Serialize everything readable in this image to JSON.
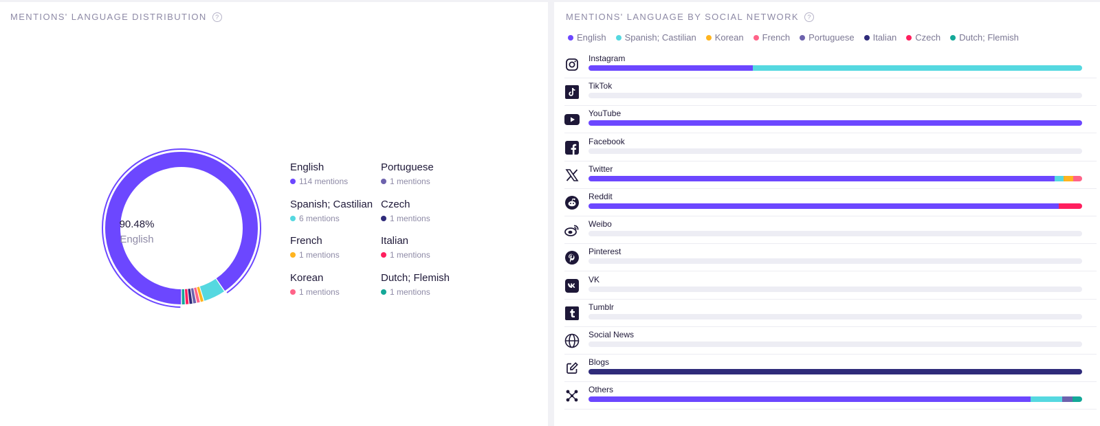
{
  "distribution": {
    "title": "MENTIONS' LANGUAGE DISTRIBUTION",
    "help": "?",
    "center_percent": "90.48%",
    "center_label": "English",
    "legend": [
      {
        "name": "English",
        "count": "114 mentions",
        "color": "#6c47ff"
      },
      {
        "name": "Spanish; Castilian",
        "count": "6 mentions",
        "color": "#55d8e0"
      },
      {
        "name": "French",
        "count": "1 mentions",
        "color": "#ffb41f"
      },
      {
        "name": "Korean",
        "count": "1 mentions",
        "color": "#ff6388"
      },
      {
        "name": "Portuguese",
        "count": "1 mentions",
        "color": "#6d62ad"
      },
      {
        "name": "Czech",
        "count": "1 mentions",
        "color": "#2f2b7a"
      },
      {
        "name": "Italian",
        "count": "1 mentions",
        "color": "#ff1f5e"
      },
      {
        "name": "Dutch; Flemish",
        "count": "1 mentions",
        "color": "#14a898"
      }
    ]
  },
  "by_network": {
    "title": "MENTIONS' LANGUAGE BY SOCIAL NETWORK",
    "help": "?",
    "legend": [
      {
        "name": "English",
        "color": "#6c47ff"
      },
      {
        "name": "Spanish; Castilian",
        "color": "#55d8e0"
      },
      {
        "name": "Korean",
        "color": "#ffb41f"
      },
      {
        "name": "French",
        "color": "#ff6388"
      },
      {
        "name": "Portuguese",
        "color": "#6d62ad"
      },
      {
        "name": "Italian",
        "color": "#2f2b7a"
      },
      {
        "name": "Czech",
        "color": "#ff1f5e"
      },
      {
        "name": "Dutch; Flemish",
        "color": "#14a898"
      }
    ],
    "networks": [
      {
        "name": "Instagram",
        "icon": "instagram-icon"
      },
      {
        "name": "TikTok",
        "icon": "tiktok-icon"
      },
      {
        "name": "YouTube",
        "icon": "youtube-icon"
      },
      {
        "name": "Facebook",
        "icon": "facebook-icon"
      },
      {
        "name": "Twitter",
        "icon": "x-icon"
      },
      {
        "name": "Reddit",
        "icon": "reddit-icon"
      },
      {
        "name": "Weibo",
        "icon": "weibo-icon"
      },
      {
        "name": "Pinterest",
        "icon": "pinterest-icon"
      },
      {
        "name": "VK",
        "icon": "vk-icon"
      },
      {
        "name": "Tumblr",
        "icon": "tumblr-icon"
      },
      {
        "name": "Social News",
        "icon": "globe-icon"
      },
      {
        "name": "Blogs",
        "icon": "edit-icon"
      },
      {
        "name": "Others",
        "icon": "nodes-icon"
      }
    ]
  },
  "chart_data": [
    {
      "type": "pie",
      "title": "MENTIONS' LANGUAGE DISTRIBUTION",
      "categories": [
        "English",
        "Spanish; Castilian",
        "French",
        "Korean",
        "Portuguese",
        "Czech",
        "Italian",
        "Dutch; Flemish"
      ],
      "values": [
        114,
        6,
        1,
        1,
        1,
        1,
        1,
        1
      ]
    },
    {
      "type": "bar",
      "stacked": "percent",
      "orientation": "horizontal",
      "title": "MENTIONS' LANGUAGE BY SOCIAL NETWORK",
      "categories": [
        "Instagram",
        "TikTok",
        "YouTube",
        "Facebook",
        "Twitter",
        "Reddit",
        "Weibo",
        "Pinterest",
        "VK",
        "Tumblr",
        "Social News",
        "Blogs",
        "Others"
      ],
      "series": [
        {
          "name": "English",
          "values": [
            33.3,
            0,
            100,
            0,
            94.4,
            95.2,
            0,
            0,
            0,
            0,
            0,
            0,
            89.5
          ]
        },
        {
          "name": "Spanish; Castilian",
          "values": [
            66.7,
            0,
            0,
            0,
            1.9,
            0,
            0,
            0,
            0,
            0,
            0,
            0,
            6.4
          ]
        },
        {
          "name": "Korean",
          "values": [
            0,
            0,
            0,
            0,
            1.9,
            0,
            0,
            0,
            0,
            0,
            0,
            0,
            0
          ]
        },
        {
          "name": "French",
          "values": [
            0,
            0,
            0,
            0,
            1.8,
            0,
            0,
            0,
            0,
            0,
            0,
            0,
            0
          ]
        },
        {
          "name": "Portuguese",
          "values": [
            0,
            0,
            0,
            0,
            0,
            0,
            0,
            0,
            0,
            0,
            0,
            0,
            2.2
          ]
        },
        {
          "name": "Italian",
          "values": [
            0,
            0,
            0,
            0,
            0,
            0,
            0,
            0,
            0,
            0,
            0,
            100,
            0
          ]
        },
        {
          "name": "Czech",
          "values": [
            0,
            0,
            0,
            0,
            0,
            4.8,
            0,
            0,
            0,
            0,
            0,
            0,
            0
          ]
        },
        {
          "name": "Dutch; Flemish",
          "values": [
            0,
            0,
            0,
            0,
            0,
            0,
            0,
            0,
            0,
            0,
            0,
            0,
            1.9
          ]
        }
      ]
    }
  ]
}
